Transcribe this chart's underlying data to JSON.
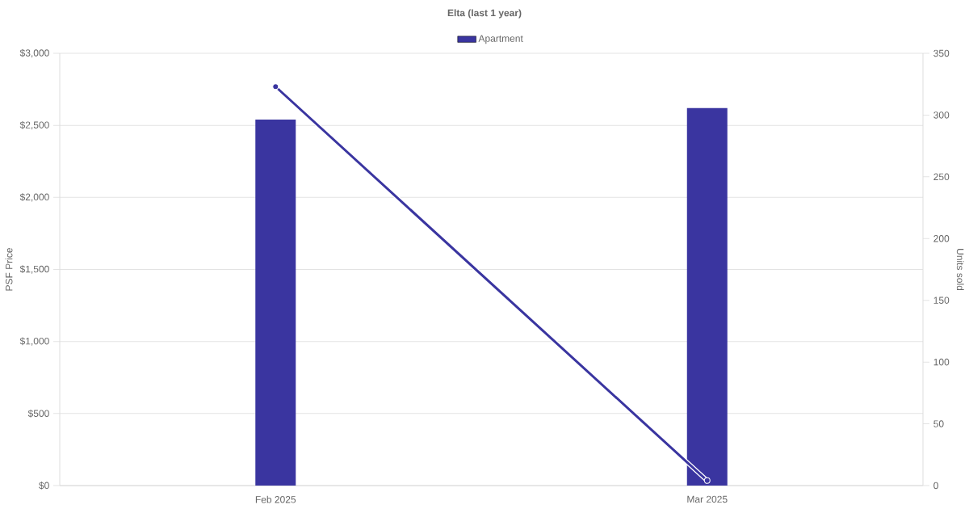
{
  "chart_data": {
    "type": "bar",
    "title": "Elta (last 1 year)",
    "ylabel": "PSF Price",
    "y2label": "Units sold",
    "categories": [
      "Feb 2025",
      "Mar 2025"
    ],
    "series": [
      {
        "name": "Apartment",
        "color": "#3a35a0",
        "values": [
          2540,
          2620
        ]
      },
      {
        "type": "line",
        "axis": "y2",
        "color": "#3a35a0",
        "marker": "circle",
        "values": [
          323,
          4
        ]
      }
    ],
    "ylim": [
      0,
      3000
    ],
    "yticks": [
      {
        "value": 0,
        "label": "$0"
      },
      {
        "value": 500,
        "label": "$500"
      },
      {
        "value": 1000,
        "label": "$1,000"
      },
      {
        "value": 1500,
        "label": "$1,500"
      },
      {
        "value": 2000,
        "label": "$2,000"
      },
      {
        "value": 2500,
        "label": "$2,500"
      },
      {
        "value": 3000,
        "label": "$3,000"
      }
    ],
    "y2lim": [
      0,
      350
    ],
    "y2ticks": [
      0,
      50,
      100,
      150,
      200,
      250,
      300,
      350
    ],
    "grid": "y",
    "legend": "top"
  }
}
